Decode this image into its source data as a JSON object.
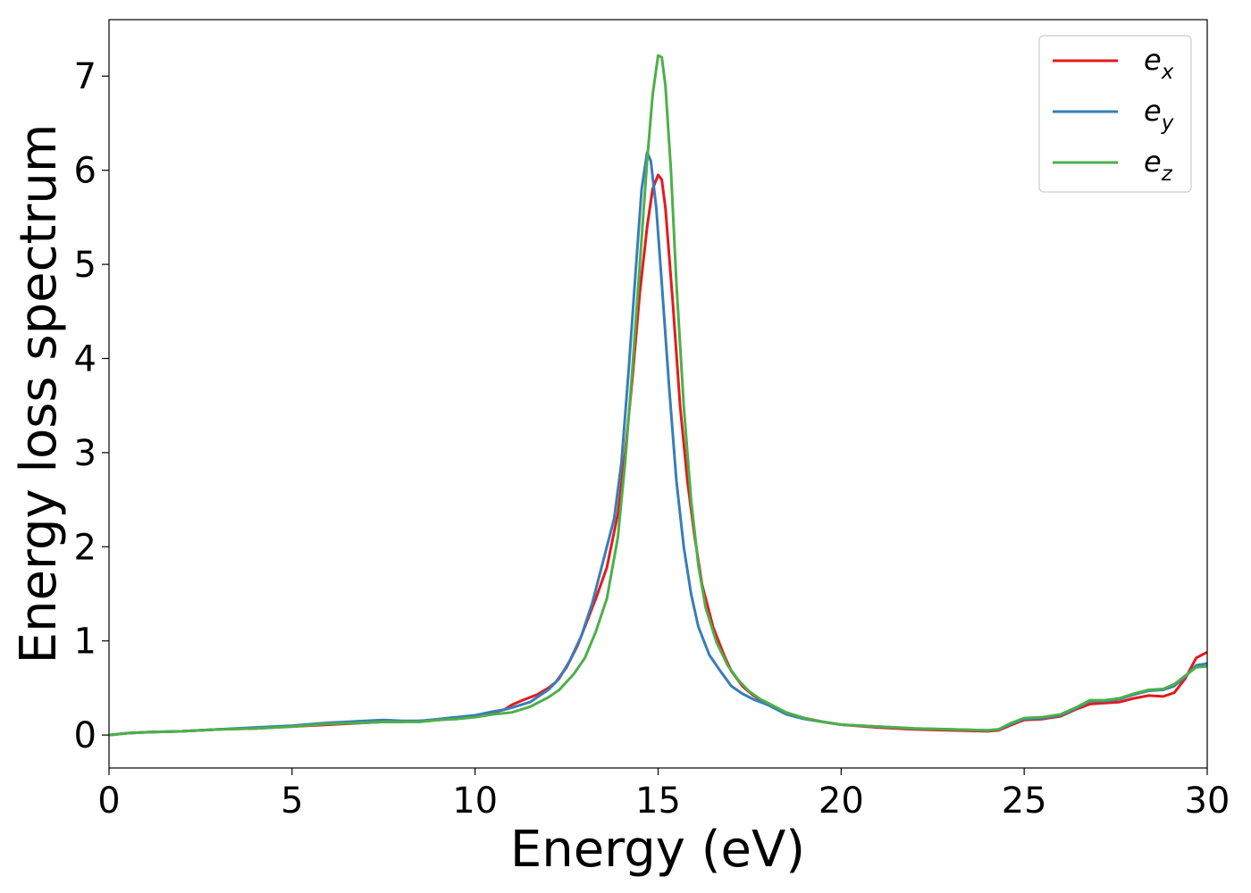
{
  "chart_data": {
    "type": "line",
    "title": "",
    "xlabel": "Energy (eV)",
    "ylabel": "Energy loss spectrum",
    "xlim": [
      0,
      30
    ],
    "ylim": [
      -0.35,
      7.6
    ],
    "xticks": [
      0,
      5,
      10,
      15,
      20,
      25,
      30
    ],
    "yticks": [
      0,
      1,
      2,
      3,
      4,
      5,
      6,
      7
    ],
    "grid": false,
    "legend_position": "top-right",
    "series": [
      {
        "name": "e_x",
        "label_base": "e",
        "label_sub": "x",
        "color": "#e41a1c",
        "points": [
          [
            0,
            0.0
          ],
          [
            0.5,
            0.02
          ],
          [
            1,
            0.03
          ],
          [
            2,
            0.04
          ],
          [
            3,
            0.06
          ],
          [
            4,
            0.07
          ],
          [
            5,
            0.09
          ],
          [
            6,
            0.11
          ],
          [
            7,
            0.13
          ],
          [
            7.5,
            0.14
          ],
          [
            8,
            0.14
          ],
          [
            8.5,
            0.15
          ],
          [
            9,
            0.16
          ],
          [
            9.5,
            0.18
          ],
          [
            10,
            0.2
          ],
          [
            10.5,
            0.24
          ],
          [
            10.8,
            0.27
          ],
          [
            11,
            0.32
          ],
          [
            11.3,
            0.37
          ],
          [
            11.7,
            0.43
          ],
          [
            12,
            0.5
          ],
          [
            12.2,
            0.56
          ],
          [
            12.5,
            0.72
          ],
          [
            12.8,
            0.95
          ],
          [
            13,
            1.15
          ],
          [
            13.3,
            1.45
          ],
          [
            13.6,
            1.78
          ],
          [
            13.9,
            2.35
          ],
          [
            14.1,
            3.0
          ],
          [
            14.3,
            3.8
          ],
          [
            14.5,
            4.7
          ],
          [
            14.7,
            5.4
          ],
          [
            14.85,
            5.8
          ],
          [
            15,
            5.95
          ],
          [
            15.1,
            5.9
          ],
          [
            15.2,
            5.6
          ],
          [
            15.4,
            4.6
          ],
          [
            15.6,
            3.5
          ],
          [
            15.8,
            2.7
          ],
          [
            16,
            2.1
          ],
          [
            16.2,
            1.6
          ],
          [
            16.5,
            1.15
          ],
          [
            16.8,
            0.85
          ],
          [
            17,
            0.68
          ],
          [
            17.3,
            0.52
          ],
          [
            17.6,
            0.42
          ],
          [
            18,
            0.33
          ],
          [
            18.5,
            0.23
          ],
          [
            19,
            0.18
          ],
          [
            19.5,
            0.14
          ],
          [
            20,
            0.11
          ],
          [
            21,
            0.08
          ],
          [
            22,
            0.06
          ],
          [
            23,
            0.05
          ],
          [
            24,
            0.04
          ],
          [
            24.3,
            0.05
          ],
          [
            24.6,
            0.1
          ],
          [
            25,
            0.16
          ],
          [
            25.5,
            0.17
          ],
          [
            26,
            0.2
          ],
          [
            26.4,
            0.27
          ],
          [
            26.8,
            0.33
          ],
          [
            27.2,
            0.34
          ],
          [
            27.6,
            0.35
          ],
          [
            28,
            0.39
          ],
          [
            28.4,
            0.42
          ],
          [
            28.8,
            0.41
          ],
          [
            29.1,
            0.45
          ],
          [
            29.4,
            0.6
          ],
          [
            29.7,
            0.82
          ],
          [
            30,
            0.88
          ]
        ]
      },
      {
        "name": "e_y",
        "label_base": "e",
        "label_sub": "y",
        "color": "#377eb8",
        "points": [
          [
            0,
            0.0
          ],
          [
            0.5,
            0.02
          ],
          [
            1,
            0.03
          ],
          [
            2,
            0.04
          ],
          [
            3,
            0.06
          ],
          [
            4,
            0.08
          ],
          [
            5,
            0.1
          ],
          [
            6,
            0.13
          ],
          [
            7,
            0.15
          ],
          [
            7.5,
            0.16
          ],
          [
            8,
            0.15
          ],
          [
            8.5,
            0.15
          ],
          [
            9,
            0.17
          ],
          [
            9.5,
            0.19
          ],
          [
            10,
            0.21
          ],
          [
            10.5,
            0.25
          ],
          [
            10.8,
            0.27
          ],
          [
            11,
            0.29
          ],
          [
            11.5,
            0.35
          ],
          [
            12,
            0.48
          ],
          [
            12.3,
            0.6
          ],
          [
            12.6,
            0.8
          ],
          [
            12.9,
            1.05
          ],
          [
            13.2,
            1.4
          ],
          [
            13.5,
            1.85
          ],
          [
            13.8,
            2.3
          ],
          [
            14,
            2.9
          ],
          [
            14.2,
            3.9
          ],
          [
            14.4,
            5.0
          ],
          [
            14.55,
            5.8
          ],
          [
            14.7,
            6.19
          ],
          [
            14.8,
            6.1
          ],
          [
            14.95,
            5.6
          ],
          [
            15.1,
            4.8
          ],
          [
            15.3,
            3.7
          ],
          [
            15.5,
            2.7
          ],
          [
            15.7,
            2.0
          ],
          [
            15.9,
            1.5
          ],
          [
            16.1,
            1.15
          ],
          [
            16.4,
            0.85
          ],
          [
            16.7,
            0.68
          ],
          [
            17,
            0.52
          ],
          [
            17.3,
            0.44
          ],
          [
            17.6,
            0.38
          ],
          [
            18,
            0.32
          ],
          [
            18.5,
            0.22
          ],
          [
            19,
            0.17
          ],
          [
            19.5,
            0.14
          ],
          [
            20,
            0.11
          ],
          [
            21,
            0.09
          ],
          [
            22,
            0.07
          ],
          [
            23,
            0.06
          ],
          [
            24,
            0.05
          ],
          [
            24.3,
            0.06
          ],
          [
            24.6,
            0.11
          ],
          [
            25,
            0.17
          ],
          [
            25.5,
            0.18
          ],
          [
            26,
            0.21
          ],
          [
            26.4,
            0.28
          ],
          [
            26.8,
            0.36
          ],
          [
            27.2,
            0.36
          ],
          [
            27.6,
            0.38
          ],
          [
            28,
            0.43
          ],
          [
            28.4,
            0.47
          ],
          [
            28.8,
            0.48
          ],
          [
            29.1,
            0.52
          ],
          [
            29.4,
            0.62
          ],
          [
            29.7,
            0.74
          ],
          [
            30,
            0.76
          ]
        ]
      },
      {
        "name": "e_z",
        "label_base": "e",
        "label_sub": "z",
        "color": "#4daf4a",
        "points": [
          [
            0,
            0.0
          ],
          [
            0.5,
            0.02
          ],
          [
            1,
            0.03
          ],
          [
            2,
            0.04
          ],
          [
            3,
            0.06
          ],
          [
            4,
            0.07
          ],
          [
            5,
            0.09
          ],
          [
            6,
            0.12
          ],
          [
            7,
            0.13
          ],
          [
            7.5,
            0.14
          ],
          [
            8,
            0.14
          ],
          [
            8.5,
            0.14
          ],
          [
            9,
            0.16
          ],
          [
            9.5,
            0.17
          ],
          [
            10,
            0.19
          ],
          [
            10.5,
            0.22
          ],
          [
            11,
            0.24
          ],
          [
            11.5,
            0.3
          ],
          [
            12,
            0.4
          ],
          [
            12.3,
            0.48
          ],
          [
            12.7,
            0.65
          ],
          [
            13,
            0.82
          ],
          [
            13.3,
            1.1
          ],
          [
            13.6,
            1.45
          ],
          [
            13.9,
            2.1
          ],
          [
            14.1,
            2.9
          ],
          [
            14.3,
            3.9
          ],
          [
            14.5,
            5.0
          ],
          [
            14.7,
            6.1
          ],
          [
            14.85,
            6.8
          ],
          [
            15,
            7.22
          ],
          [
            15.1,
            7.2
          ],
          [
            15.2,
            6.9
          ],
          [
            15.35,
            6.0
          ],
          [
            15.5,
            4.8
          ],
          [
            15.7,
            3.5
          ],
          [
            15.9,
            2.5
          ],
          [
            16.1,
            1.8
          ],
          [
            16.3,
            1.35
          ],
          [
            16.6,
            0.98
          ],
          [
            16.9,
            0.74
          ],
          [
            17.2,
            0.58
          ],
          [
            17.5,
            0.46
          ],
          [
            17.8,
            0.38
          ],
          [
            18,
            0.34
          ],
          [
            18.5,
            0.24
          ],
          [
            19,
            0.18
          ],
          [
            19.5,
            0.14
          ],
          [
            20,
            0.11
          ],
          [
            21,
            0.09
          ],
          [
            22,
            0.07
          ],
          [
            23,
            0.06
          ],
          [
            24,
            0.05
          ],
          [
            24.3,
            0.06
          ],
          [
            24.6,
            0.12
          ],
          [
            25,
            0.18
          ],
          [
            25.5,
            0.19
          ],
          [
            26,
            0.22
          ],
          [
            26.4,
            0.29
          ],
          [
            26.8,
            0.37
          ],
          [
            27.2,
            0.37
          ],
          [
            27.6,
            0.39
          ],
          [
            28,
            0.44
          ],
          [
            28.4,
            0.48
          ],
          [
            28.8,
            0.49
          ],
          [
            29.1,
            0.54
          ],
          [
            29.4,
            0.63
          ],
          [
            29.7,
            0.72
          ],
          [
            30,
            0.73
          ]
        ]
      }
    ]
  }
}
